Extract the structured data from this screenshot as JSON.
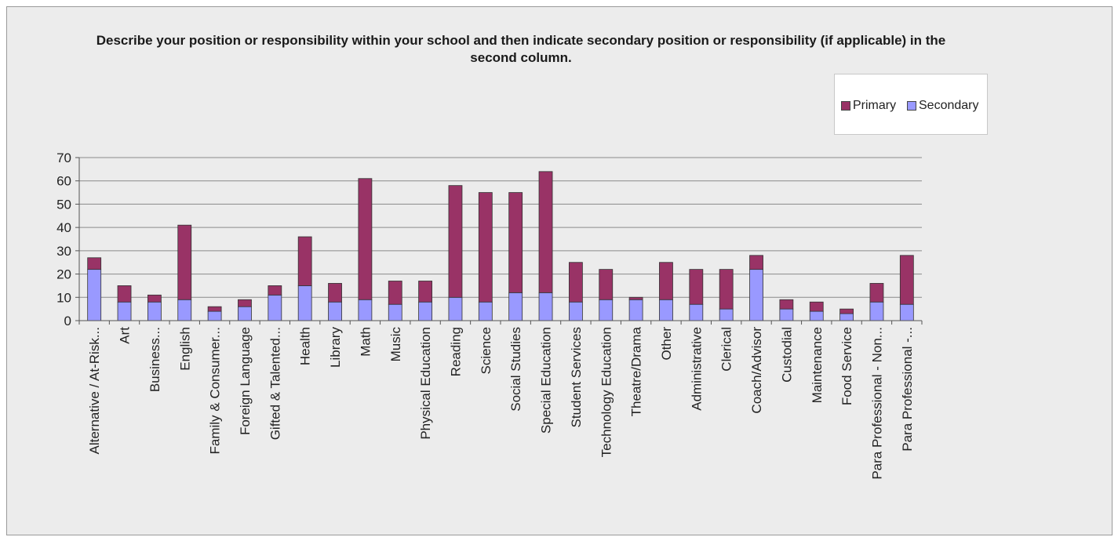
{
  "chart_data": {
    "type": "bar",
    "stacked": true,
    "title": "Describe your position or responsibility within your school and then indicate secondary position or responsibility (if applicable) in the second column.",
    "xlabel": "",
    "ylabel": "",
    "ylim": [
      0,
      70
    ],
    "yticks": [
      0,
      10,
      20,
      30,
      40,
      50,
      60,
      70
    ],
    "grid": true,
    "legend_position": "top-right",
    "categories": [
      "Alternative / At-Risk...",
      "Art",
      "Business...",
      "English",
      "Family & Consumer...",
      "Foreign Language",
      "Gifted & Talented...",
      "Health",
      "Library",
      "Math",
      "Music",
      "Physical Education",
      "Reading",
      "Science",
      "Social Studies",
      "Special Education",
      "Student Services",
      "Technology Education",
      "Theatre/Drama",
      "Other",
      "Administrative",
      "Clerical",
      "Coach/Advisor",
      "Custodial",
      "Maintenance",
      "Food Service",
      "Para Professional - Non...",
      "Para Professional -..."
    ],
    "series": [
      {
        "name": "Secondary",
        "color": "#9999ff",
        "values": [
          22,
          8,
          8,
          9,
          4,
          6,
          11,
          15,
          8,
          9,
          7,
          8,
          10,
          8,
          12,
          12,
          8,
          9,
          9,
          9,
          7,
          5,
          22,
          5,
          4,
          3,
          8,
          7
        ]
      },
      {
        "name": "Primary",
        "color": "#993366",
        "values": [
          5,
          7,
          3,
          32,
          2,
          3,
          4,
          21,
          8,
          52,
          10,
          9,
          48,
          47,
          43,
          52,
          17,
          13,
          1,
          16,
          15,
          17,
          6,
          4,
          4,
          2,
          8,
          21
        ]
      }
    ]
  },
  "legend": {
    "items": [
      {
        "label": "Primary",
        "color": "#993366"
      },
      {
        "label": "Secondary",
        "color": "#9999ff"
      }
    ]
  }
}
